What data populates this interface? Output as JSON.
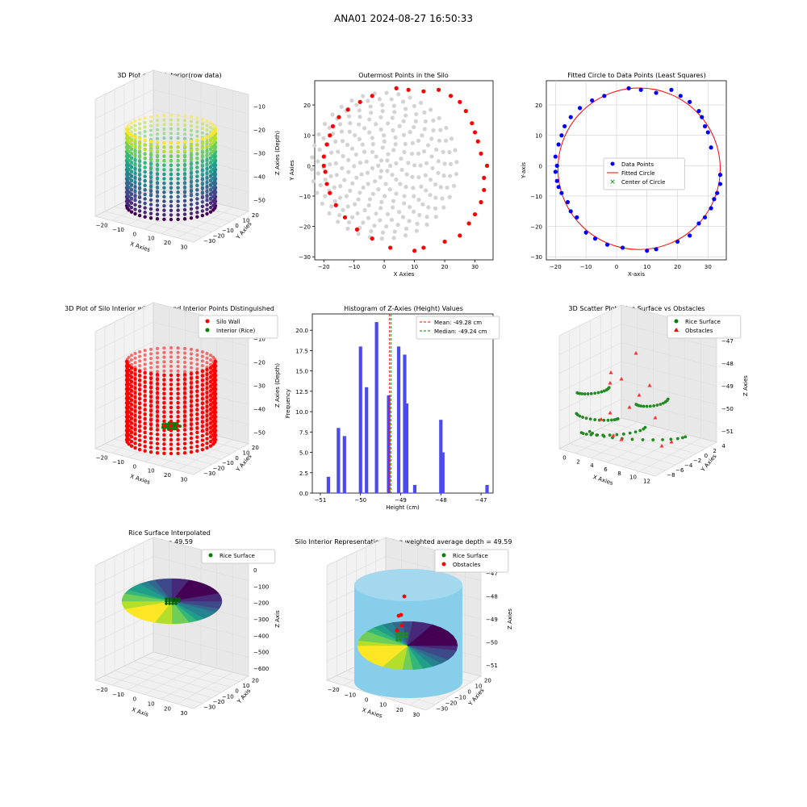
{
  "suptitle": "ANA01 2024-08-27 16:50:33",
  "chart_data": [
    {
      "id": "p1",
      "type": "scatter3d",
      "title": "3D Plot of Silo Interior(row data)",
      "xlabel": "X Axies",
      "ylabel": "Y Axies",
      "zlabel": "Z Axies (Depth)",
      "xticks": [
        "−20",
        "−10",
        "0",
        "10",
        "20",
        "30"
      ],
      "yticks": [
        "−30",
        "−20",
        "−10",
        "0",
        "10",
        "20"
      ],
      "zticks": [
        "−10",
        "−20",
        "−30",
        "−40",
        "−50"
      ],
      "xlim": [
        -22,
        35
      ],
      "ylim": [
        -30,
        26
      ],
      "zlim": [
        -58,
        -5
      ],
      "colormap": "viridis",
      "wall_radius": 27,
      "center": [
        7,
        -1
      ],
      "z_top": -8,
      "z_bottom": -53
    },
    {
      "id": "p2",
      "type": "scatter",
      "title": "Outermost Points in the Silo",
      "xlabel": "X Axies",
      "ylabel": "Y Axies",
      "xticks": [
        -20,
        -10,
        0,
        10,
        20,
        30
      ],
      "yticks": [
        -30,
        -20,
        -10,
        0,
        10,
        20
      ],
      "xlim": [
        -23,
        36
      ],
      "ylim": [
        -31,
        28
      ],
      "series": [
        {
          "color": "#d3d3d3",
          "rings": [
            2,
            4,
            6,
            8,
            10,
            12,
            14,
            16,
            18,
            20,
            22,
            24
          ],
          "center": [
            0,
            0
          ]
        },
        {
          "color": "#ff0000",
          "points": [
            [
              -19.5,
              -2
            ],
            [
              -19,
              -6
            ],
            [
              -18,
              -9
            ],
            [
              -16,
              -13
            ],
            [
              -13,
              -17
            ],
            [
              -9,
              -21
            ],
            [
              -4,
              -24
            ],
            [
              2,
              -27
            ],
            [
              10,
              -28
            ],
            [
              13,
              -27
            ],
            [
              20,
              -25
            ],
            [
              25,
              -23
            ],
            [
              28,
              -19
            ],
            [
              30,
              -16
            ],
            [
              32,
              -12
            ],
            [
              33,
              -8
            ],
            [
              33,
              -4
            ],
            [
              34,
              0
            ],
            [
              32,
              4
            ],
            [
              31,
              8
            ],
            [
              30,
              11
            ],
            [
              29,
              14
            ],
            [
              27,
              18
            ],
            [
              25,
              21
            ],
            [
              22,
              23
            ],
            [
              18,
              25
            ],
            [
              13,
              24.5
            ],
            [
              8,
              25
            ],
            [
              4,
              25.5
            ],
            [
              -4,
              23
            ],
            [
              -8,
              21
            ],
            [
              -12,
              18.5
            ],
            [
              -15,
              16
            ],
            [
              -17,
              13
            ],
            [
              -18,
              10
            ],
            [
              -19,
              7
            ],
            [
              -20,
              3
            ],
            [
              -20,
              0
            ]
          ]
        }
      ]
    },
    {
      "id": "p3",
      "type": "scatter",
      "title": "Fitted Circle to Data Points (Least Squares)",
      "xlabel": "X-axis",
      "ylabel": "Y-axis",
      "xticks": [
        -20,
        -10,
        0,
        10,
        20,
        30
      ],
      "yticks": [
        -30,
        -20,
        -10,
        0,
        10,
        20
      ],
      "xlim": [
        -23,
        36
      ],
      "ylim": [
        -31,
        28
      ],
      "grid": true,
      "legend": [
        "Data Points",
        "Fitted Circle",
        "Center of Circle"
      ],
      "legend_position": "center",
      "circle": {
        "cx": 7.4,
        "cy": -1.0,
        "r": 26.6
      },
      "points": [
        [
          -20,
          -2
        ],
        [
          -19.5,
          0
        ],
        [
          -19.5,
          -5
        ],
        [
          -19,
          -7
        ],
        [
          -18,
          -9
        ],
        [
          -16,
          -12
        ],
        [
          -15,
          -15
        ],
        [
          -13,
          -17
        ],
        [
          -10,
          -22
        ],
        [
          -7,
          -24
        ],
        [
          -3,
          -26
        ],
        [
          2,
          -27
        ],
        [
          10,
          -28
        ],
        [
          13,
          -27.5
        ],
        [
          20,
          -25
        ],
        [
          24,
          -23
        ],
        [
          27,
          -19
        ],
        [
          29,
          -17
        ],
        [
          31,
          -14
        ],
        [
          32,
          -11
        ],
        [
          33,
          -9
        ],
        [
          34,
          -6
        ],
        [
          34,
          -3
        ],
        [
          31,
          6
        ],
        [
          30,
          11
        ],
        [
          29,
          13
        ],
        [
          28,
          16
        ],
        [
          27,
          18
        ],
        [
          24,
          21
        ],
        [
          21,
          23
        ],
        [
          18,
          25
        ],
        [
          13,
          24
        ],
        [
          8,
          25
        ],
        [
          4,
          25.5
        ],
        [
          -4,
          23
        ],
        [
          -8,
          21.5
        ],
        [
          -12,
          19
        ],
        [
          -15,
          16
        ],
        [
          -17,
          13
        ],
        [
          -18,
          10
        ],
        [
          -19,
          7
        ],
        [
          -20,
          3
        ]
      ]
    },
    {
      "id": "p4",
      "type": "scatter3d",
      "title": "3D Plot of Silo Interior with Wall and Interior Points Distinguished",
      "xlabel": "X Axies",
      "ylabel": "Y Axies",
      "zlabel": "Z Axies (Depth)",
      "xticks": [
        "−20",
        "−10",
        "0",
        "10",
        "20",
        "30"
      ],
      "yticks": [
        "−30",
        "−20",
        "−10",
        "0",
        "10",
        "20"
      ],
      "zticks": [
        "−10",
        "−20",
        "−30",
        "−40",
        "−50"
      ],
      "legend": [
        "Silo Wall",
        "Interior (Rice)"
      ],
      "legend_position": "upper right",
      "colors": {
        "wall": "#ff0000",
        "interior": "#008000"
      }
    },
    {
      "id": "p5",
      "type": "bar",
      "title": "Histogram of Z-Axies (Height) Values",
      "xlabel": "Height (cm)",
      "ylabel": "Frequency",
      "xticks": [
        "−51",
        "−50",
        "−49",
        "−48",
        "−47"
      ],
      "xtick_values": [
        -51,
        -50,
        -49,
        -48,
        -47
      ],
      "yticks": [
        "0.0",
        "2.5",
        "5.0",
        "7.5",
        "10.0",
        "12.5",
        "15.0",
        "17.5",
        "20.0"
      ],
      "ytick_values": [
        0,
        2.5,
        5,
        7.5,
        10,
        12.5,
        15,
        17.5,
        20
      ],
      "xlim": [
        -51.2,
        -46.7
      ],
      "ylim": [
        0,
        22
      ],
      "bars": [
        {
          "x": -50.8,
          "count": 2
        },
        {
          "x": -50.55,
          "count": 8
        },
        {
          "x": -50.4,
          "count": 7
        },
        {
          "x": -50.0,
          "count": 18
        },
        {
          "x": -49.85,
          "count": 13
        },
        {
          "x": -49.6,
          "count": 21
        },
        {
          "x": -49.3,
          "count": 12
        },
        {
          "x": -49.05,
          "count": 18
        },
        {
          "x": -48.9,
          "count": 17
        },
        {
          "x": -48.85,
          "count": 11
        },
        {
          "x": -48.65,
          "count": 1
        },
        {
          "x": -48.0,
          "count": 9
        },
        {
          "x": -47.95,
          "count": 5
        },
        {
          "x": -46.85,
          "count": 1
        }
      ],
      "bar_color": "#4a4af0",
      "lines": [
        {
          "label": "Mean: -49.28 cm",
          "value": -49.28,
          "color": "#ff0000"
        },
        {
          "label": "Median: -49.24 cm",
          "value": -49.24,
          "color": "#008000"
        }
      ],
      "legend_position": "upper right"
    },
    {
      "id": "p6",
      "type": "scatter3d",
      "title": "3D Scatter Plot: Rice Surface vs Obstacles",
      "xlabel": "X Axies",
      "ylabel": "Y Axies",
      "zlabel": "Z Axies",
      "xticks": [
        "0",
        "2",
        "4",
        "6",
        "8",
        "10",
        "12"
      ],
      "yticks": [
        "−8",
        "−6",
        "−4",
        "−2",
        "0",
        "2",
        "4"
      ],
      "zticks": [
        "−47",
        "−48",
        "−49",
        "−50",
        "−51"
      ],
      "legend": [
        "Rice Surface",
        "Obstacles"
      ],
      "legend_position": "upper right"
    },
    {
      "id": "p7",
      "type": "surface3d",
      "title": "Rice Surface Interpolated",
      "subtitle": "depth = 49.59",
      "xlabel": "X Axis",
      "ylabel": "Y Axis",
      "zlabel": "Z Axis",
      "xticks": [
        "−20",
        "−10",
        "0",
        "10",
        "20",
        "30"
      ],
      "yticks": [
        "−30",
        "−20",
        "−10",
        "0",
        "10",
        "20"
      ],
      "zticks": [
        "0",
        "−100",
        "−200",
        "−300",
        "−400",
        "−500",
        "−600"
      ],
      "legend": [
        "Rice Surface"
      ],
      "legend_position": "upper right"
    },
    {
      "id": "p8",
      "type": "surface3d",
      "title": "Silo Interior Representation using weighted average depth = 49.59",
      "xlabel": "X Axies",
      "ylabel": "Y Axies",
      "zlabel": "Z Axies",
      "xticks": [
        "−20",
        "−10",
        "0",
        "10",
        "20",
        "30"
      ],
      "yticks": [
        "−30",
        "−20",
        "−10",
        "0",
        "10",
        "20"
      ],
      "zticks": [
        "−47",
        "−48",
        "−49",
        "−50",
        "−51"
      ],
      "legend": [
        "Rice Surface",
        "Obstacles"
      ],
      "legend_position": "upper right",
      "cylinder_color": "#87ceeb"
    }
  ]
}
